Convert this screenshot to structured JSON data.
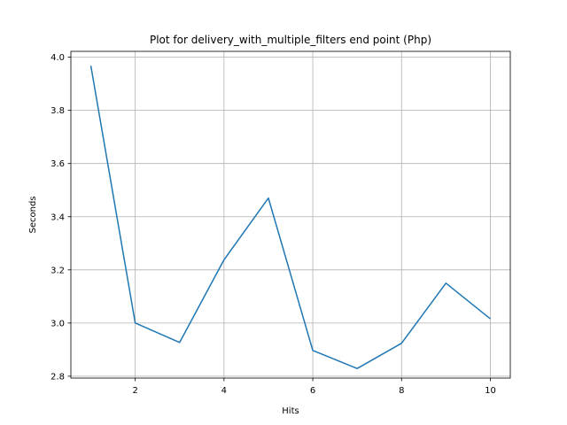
{
  "chart_data": {
    "type": "line",
    "title": "Plot for delivery_with_multiple_filters end point (Php)",
    "xlabel": "Hits",
    "ylabel": "Seconds",
    "xlim": [
      0.55,
      10.45
    ],
    "ylim": [
      2.793,
      4.022
    ],
    "xticks": [
      2,
      4,
      6,
      8,
      10
    ],
    "yticks": [
      2.8,
      3.0,
      3.2,
      3.4,
      3.6,
      3.8,
      4.0
    ],
    "ytick_labels": [
      "2.8",
      "3.0",
      "3.2",
      "3.4",
      "3.6",
      "3.8",
      "4.0"
    ],
    "grid": true,
    "series": [
      {
        "color": "#1f77b4",
        "x": [
          1,
          2,
          3,
          4,
          5,
          6,
          7,
          8,
          9,
          10
        ],
        "y": [
          3.968,
          3.0,
          2.927,
          3.238,
          3.47,
          2.897,
          2.829,
          2.924,
          3.15,
          3.016
        ]
      }
    ]
  }
}
